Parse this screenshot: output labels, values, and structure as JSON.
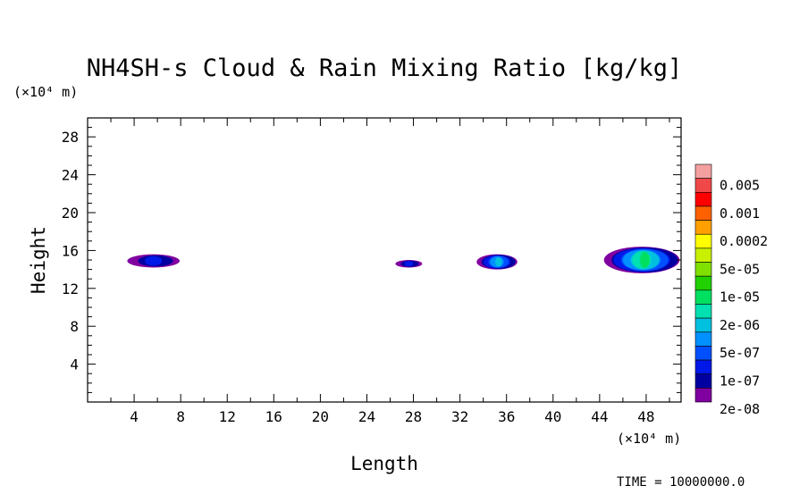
{
  "chart_data": {
    "type": "heatmap",
    "title": "NH4SH-s Cloud & Rain Mixing Ratio [kg/kg]",
    "xlabel": "Length",
    "ylabel": "Height",
    "x_unit": "(×10⁴ m)",
    "y_unit": "(×10⁴ m)",
    "xlim": [
      0,
      51
    ],
    "ylim": [
      0,
      30
    ],
    "x_ticks": [
      "4",
      "8",
      "12",
      "16",
      "20",
      "24",
      "28",
      "32",
      "36",
      "40",
      "44",
      "48"
    ],
    "y_ticks": [
      "4",
      "8",
      "12",
      "16",
      "20",
      "24",
      "28"
    ],
    "colorbar": {
      "labels": [
        "0.005",
        "0.001",
        "0.0002",
        "5e-05",
        "1e-05",
        "2e-06",
        "5e-07",
        "1e-07",
        "2e-08"
      ],
      "colors": [
        "#f4a0a0",
        "#f04848",
        "#ff0000",
        "#ff6000",
        "#ffa000",
        "#ffff00",
        "#c8f000",
        "#80e000",
        "#20d000",
        "#00e060",
        "#00e0b0",
        "#00c0e0",
        "#0090ff",
        "#0050ff",
        "#0018e8",
        "#0000a0",
        "#8000a0"
      ]
    },
    "cloud_regions": [
      {
        "x_range": [
          3.5,
          8
        ],
        "y_range": [
          14.2,
          15.6
        ],
        "max_level": "5e-07"
      },
      {
        "x_range": [
          26.5,
          28.8
        ],
        "y_range": [
          14.2,
          15.0
        ],
        "max_level": "5e-07"
      },
      {
        "x_range": [
          33.5,
          37
        ],
        "y_range": [
          14.0,
          15.6
        ],
        "max_level": "1e-05"
      },
      {
        "x_range": [
          44.5,
          51
        ],
        "y_range": [
          13.6,
          16.4
        ],
        "max_level": "5e-05"
      }
    ],
    "grid": false,
    "legend": "right"
  },
  "footer": {
    "time_label": "TIME = 10000000.0"
  }
}
